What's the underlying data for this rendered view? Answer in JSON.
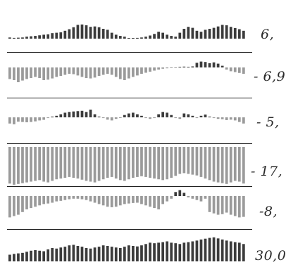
{
  "colors": {
    "positive": "#3b3b3b",
    "negative": "#9a9a9a",
    "separator": "#1e1e1e",
    "label": "#2b2b2b"
  },
  "panels": [
    {
      "value_label": "6,",
      "chart_data": {
        "type": "bar",
        "values": [
          0.06,
          0.04,
          0.05,
          0.06,
          0.1,
          0.12,
          0.14,
          0.17,
          0.2,
          0.22,
          0.28,
          0.3,
          0.32,
          0.4,
          0.48,
          0.58,
          0.7,
          0.72,
          0.68,
          0.6,
          0.62,
          0.58,
          0.5,
          0.45,
          0.3,
          0.2,
          0.14,
          0.1,
          0.02,
          0.01,
          0.04,
          0.06,
          0.1,
          0.16,
          0.24,
          0.35,
          0.3,
          0.2,
          0.14,
          0.1,
          0.3,
          0.5,
          0.6,
          0.55,
          0.4,
          0.35,
          0.45,
          0.5,
          0.55,
          0.62,
          0.7,
          0.68,
          0.6,
          0.54,
          0.48,
          0.4
        ]
      }
    },
    {
      "value_label": "- 6,9",
      "chart_data": {
        "type": "bar",
        "values": [
          -0.55,
          -0.6,
          -0.7,
          -0.62,
          -0.55,
          -0.5,
          -0.45,
          -0.5,
          -0.6,
          -0.58,
          -0.52,
          -0.45,
          -0.4,
          -0.35,
          -0.3,
          -0.32,
          -0.38,
          -0.45,
          -0.5,
          -0.52,
          -0.48,
          -0.4,
          -0.35,
          -0.3,
          -0.35,
          -0.45,
          -0.55,
          -0.6,
          -0.52,
          -0.45,
          -0.38,
          -0.3,
          -0.25,
          -0.2,
          -0.15,
          -0.1,
          -0.06,
          -0.04,
          -0.02,
          -0.01,
          0.02,
          0.04,
          0.03,
          0.05,
          0.22,
          0.28,
          0.26,
          0.2,
          0.24,
          0.18,
          0.08,
          -0.1,
          -0.18,
          -0.22,
          -0.26,
          -0.3
        ]
      }
    },
    {
      "value_label": "- 5,",
      "chart_data": {
        "type": "bar",
        "values": [
          -0.4,
          -0.45,
          -0.28,
          -0.3,
          -0.32,
          -0.3,
          -0.26,
          -0.2,
          -0.16,
          -0.05,
          0.05,
          0.1,
          0.2,
          0.3,
          0.35,
          0.38,
          0.4,
          0.42,
          0.35,
          0.5,
          0.2,
          0.05,
          -0.05,
          -0.15,
          -0.2,
          -0.1,
          -0.02,
          0.15,
          0.25,
          0.3,
          0.2,
          0.1,
          -0.05,
          -0.1,
          -0.05,
          0.2,
          0.35,
          0.3,
          0.15,
          -0.05,
          -0.1,
          0.25,
          0.2,
          0.1,
          -0.05,
          0.1,
          0.18,
          0.05,
          -0.05,
          -0.1,
          -0.12,
          -0.18,
          -0.15,
          -0.2,
          -0.3,
          -0.4
        ]
      }
    },
    {
      "value_label": "- 17,",
      "chart_data": {
        "type": "bar",
        "values": [
          -0.95,
          -0.98,
          -0.96,
          -0.94,
          -0.92,
          -0.9,
          -0.88,
          -0.86,
          -0.9,
          -0.92,
          -0.88,
          -0.84,
          -0.82,
          -0.8,
          -0.78,
          -0.8,
          -0.82,
          -0.85,
          -0.88,
          -0.9,
          -0.92,
          -0.88,
          -0.84,
          -0.8,
          -0.78,
          -0.82,
          -0.86,
          -0.88,
          -0.84,
          -0.8,
          -0.78,
          -0.76,
          -0.78,
          -0.8,
          -0.82,
          -0.84,
          -0.86,
          -0.84,
          -0.8,
          -0.75,
          -0.7,
          -0.68,
          -0.7,
          -0.72,
          -0.74,
          -0.78,
          -0.82,
          -0.86,
          -0.9,
          -0.92,
          -0.94,
          -0.96,
          -0.92,
          -0.88,
          -0.9,
          -0.95
        ]
      }
    },
    {
      "value_label": "-8,",
      "chart_data": {
        "type": "bar",
        "values": [
          -0.8,
          -0.75,
          -0.7,
          -0.6,
          -0.5,
          -0.45,
          -0.4,
          -0.35,
          -0.3,
          -0.28,
          -0.25,
          -0.2,
          -0.18,
          -0.15,
          -0.12,
          -0.1,
          -0.1,
          -0.12,
          -0.15,
          -0.2,
          -0.25,
          -0.3,
          -0.35,
          -0.4,
          -0.42,
          -0.4,
          -0.35,
          -0.3,
          -0.28,
          -0.26,
          -0.25,
          -0.3,
          -0.35,
          -0.4,
          -0.45,
          -0.5,
          -0.3,
          -0.2,
          -0.1,
          0.15,
          0.22,
          0.12,
          -0.05,
          -0.1,
          -0.15,
          -0.2,
          -0.1,
          -0.6,
          -0.65,
          -0.7,
          -0.68,
          -0.62,
          -0.7,
          -0.75,
          -0.8,
          -0.78
        ]
      }
    },
    {
      "value_label": "30,0",
      "chart_data": {
        "type": "bar",
        "values": [
          0.25,
          0.28,
          0.3,
          0.32,
          0.36,
          0.4,
          0.42,
          0.4,
          0.38,
          0.45,
          0.5,
          0.48,
          0.52,
          0.55,
          0.6,
          0.62,
          0.58,
          0.55,
          0.5,
          0.48,
          0.52,
          0.55,
          0.6,
          0.58,
          0.55,
          0.52,
          0.5,
          0.55,
          0.6,
          0.58,
          0.56,
          0.6,
          0.65,
          0.7,
          0.68,
          0.7,
          0.72,
          0.75,
          0.7,
          0.68,
          0.65,
          0.7,
          0.72,
          0.75,
          0.78,
          0.82,
          0.85,
          0.88,
          0.9,
          0.86,
          0.82,
          0.78,
          0.75,
          0.72,
          0.7,
          0.65
        ]
      }
    }
  ]
}
